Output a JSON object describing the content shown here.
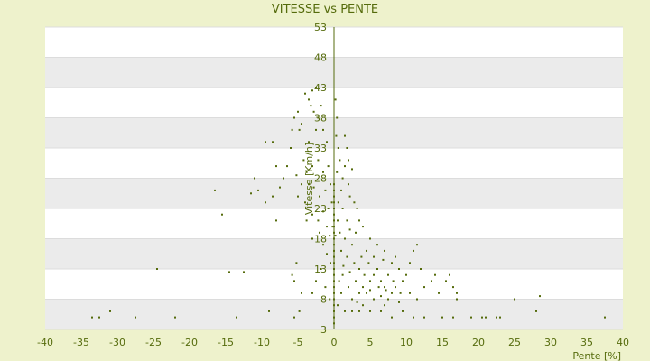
{
  "chart_data": {
    "type": "scatter",
    "title": "VITESSE vs PENTE",
    "xlabel": "Pente [%]",
    "ylabel": "Vitesse [Km/h]",
    "xlim": [
      -40,
      40
    ],
    "ylim": [
      3,
      53
    ],
    "x_ticks": [
      "-40",
      "-35",
      "-30",
      "-25",
      "-20",
      "-15",
      "-10",
      "-5",
      "0",
      "5",
      "10",
      "15",
      "20",
      "25",
      "30",
      "35",
      "40"
    ],
    "y_ticks": [
      "3",
      "8",
      "13",
      "18",
      "23",
      "28",
      "33",
      "38",
      "43",
      "48",
      "53"
    ],
    "grid": true,
    "legend": "none",
    "colors": {
      "points": "#556b0c",
      "band": "#ebebeb",
      "plot": "#ffffff",
      "background": "#eef2cc"
    },
    "series": [
      {
        "points": [
          [
            -33.5,
            5
          ],
          [
            -32.5,
            5
          ],
          [
            -31,
            6
          ],
          [
            -27.5,
            5
          ],
          [
            -24.5,
            13
          ],
          [
            -22,
            5
          ],
          [
            -16.5,
            26
          ],
          [
            -15.5,
            22
          ],
          [
            -14.5,
            12.5
          ],
          [
            -13.5,
            5
          ],
          [
            -12.5,
            12.5
          ],
          [
            -11.5,
            25.5
          ],
          [
            -11,
            28
          ],
          [
            -10.5,
            26
          ],
          [
            -9.5,
            24
          ],
          [
            -9,
            6
          ],
          [
            -8.5,
            25
          ],
          [
            -8,
            21
          ],
          [
            -9.5,
            34
          ],
          [
            -8.5,
            34
          ],
          [
            -8,
            30
          ],
          [
            -7.5,
            26.5
          ],
          [
            -7,
            28
          ],
          [
            -6.5,
            30
          ],
          [
            -6,
            33
          ],
          [
            -5.8,
            36
          ],
          [
            -5.5,
            38
          ],
          [
            -5,
            39
          ],
          [
            -4.8,
            36
          ],
          [
            -4.5,
            37
          ],
          [
            -4,
            42
          ],
          [
            -3.5,
            41
          ],
          [
            -3,
            42.5
          ],
          [
            -2.5,
            43
          ],
          [
            -3.2,
            40
          ],
          [
            -2.8,
            39
          ],
          [
            -2.2,
            38
          ],
          [
            -1.8,
            40
          ],
          [
            -2.5,
            36
          ],
          [
            -1.5,
            36
          ],
          [
            -1,
            34
          ],
          [
            -3.5,
            34
          ],
          [
            -4.2,
            31
          ],
          [
            -3.8,
            29
          ],
          [
            -3,
            30
          ],
          [
            -2.2,
            31
          ],
          [
            -1.5,
            29
          ],
          [
            -0.8,
            30
          ],
          [
            -0.5,
            27
          ],
          [
            -1.2,
            26
          ],
          [
            -2,
            25
          ],
          [
            -2.8,
            26.5
          ],
          [
            -3.5,
            27
          ],
          [
            -4.5,
            27
          ],
          [
            -5,
            25
          ],
          [
            -5.2,
            28.5
          ],
          [
            -4,
            24
          ],
          [
            -3,
            22
          ],
          [
            -2.2,
            21
          ],
          [
            -1.5,
            22.5
          ],
          [
            -0.8,
            23
          ],
          [
            -0.3,
            24
          ],
          [
            -1,
            20
          ],
          [
            -2,
            19
          ],
          [
            -1.5,
            17
          ],
          [
            -0.6,
            18.5
          ],
          [
            -0.2,
            20
          ],
          [
            -3,
            18
          ],
          [
            -3.8,
            21
          ],
          [
            -5.5,
            11
          ],
          [
            -5.2,
            14
          ],
          [
            -5.8,
            12
          ],
          [
            -4.5,
            9
          ],
          [
            -4.8,
            6
          ],
          [
            -5.5,
            5
          ],
          [
            -3,
            9
          ],
          [
            -2.5,
            11
          ],
          [
            -1.8,
            13
          ],
          [
            -1.2,
            10
          ],
          [
            -0.6,
            8
          ],
          [
            -0.5,
            14
          ],
          [
            -1,
            15.5
          ],
          [
            0,
            4
          ],
          [
            0,
            5
          ],
          [
            0,
            6
          ],
          [
            0,
            7
          ],
          [
            0,
            8
          ],
          [
            0,
            9
          ],
          [
            0,
            10
          ],
          [
            0,
            11
          ],
          [
            0,
            12
          ],
          [
            0,
            13
          ],
          [
            0,
            14
          ],
          [
            0,
            15
          ],
          [
            0,
            16
          ],
          [
            0,
            17
          ],
          [
            0,
            18
          ],
          [
            0,
            19
          ],
          [
            0,
            20
          ],
          [
            0,
            21
          ],
          [
            0,
            22
          ],
          [
            0,
            23
          ],
          [
            0,
            24
          ],
          [
            0,
            25
          ],
          [
            0,
            26
          ],
          [
            0,
            27
          ],
          [
            0.2,
            18.5
          ],
          [
            0.5,
            21
          ],
          [
            0.8,
            19
          ],
          [
            0.6,
            24
          ],
          [
            1,
            26
          ],
          [
            0.4,
            29
          ],
          [
            0.8,
            31
          ],
          [
            1.2,
            28
          ],
          [
            1.5,
            35
          ],
          [
            1.8,
            33
          ],
          [
            1.5,
            30
          ],
          [
            2,
            31
          ],
          [
            2.5,
            29.5
          ],
          [
            2,
            27
          ],
          [
            1.2,
            23
          ],
          [
            1.8,
            21
          ],
          [
            2.2,
            25
          ],
          [
            2.8,
            24
          ],
          [
            3.2,
            23
          ],
          [
            1.5,
            18
          ],
          [
            1,
            16
          ],
          [
            1.8,
            15
          ],
          [
            2.5,
            17
          ],
          [
            3,
            19
          ],
          [
            3.5,
            21
          ],
          [
            4,
            20
          ],
          [
            2.8,
            14
          ],
          [
            3.5,
            13
          ],
          [
            4.2,
            12
          ],
          [
            3,
            11
          ],
          [
            4,
            10
          ],
          [
            4.5,
            9
          ],
          [
            5,
            11
          ],
          [
            5.5,
            12
          ],
          [
            6,
            13
          ],
          [
            6.5,
            11
          ],
          [
            7,
            10
          ],
          [
            7.5,
            12
          ],
          [
            8,
            14
          ],
          [
            8.5,
            15
          ],
          [
            9,
            13
          ],
          [
            9.5,
            11
          ],
          [
            10,
            12
          ],
          [
            10.5,
            14
          ],
          [
            11,
            16
          ],
          [
            11.5,
            17
          ],
          [
            12,
            13
          ],
          [
            5.5,
            15
          ],
          [
            6,
            17
          ],
          [
            7,
            16
          ],
          [
            5,
            18
          ],
          [
            4.5,
            16
          ],
          [
            6.5,
            8.5
          ],
          [
            7,
            7
          ],
          [
            7.5,
            8
          ],
          [
            8,
            9
          ],
          [
            8.5,
            10
          ],
          [
            9,
            7.5
          ],
          [
            5.5,
            8
          ],
          [
            5,
            9.5
          ],
          [
            4,
            7
          ],
          [
            3.5,
            9
          ],
          [
            2.5,
            8
          ],
          [
            2,
            10
          ],
          [
            1.2,
            12
          ],
          [
            1,
            9
          ],
          [
            1.5,
            6
          ],
          [
            2.5,
            6
          ],
          [
            3.5,
            6
          ],
          [
            5,
            6
          ],
          [
            6.5,
            6
          ],
          [
            8,
            5
          ],
          [
            9.5,
            6
          ],
          [
            11,
            5
          ],
          [
            12.5,
            5
          ],
          [
            10.5,
            9
          ],
          [
            11.5,
            8
          ],
          [
            12.5,
            10
          ],
          [
            13.5,
            11
          ],
          [
            14,
            12
          ],
          [
            14.5,
            9
          ],
          [
            15.5,
            11
          ],
          [
            16,
            12
          ],
          [
            16.5,
            10
          ],
          [
            17,
            9
          ],
          [
            17,
            8
          ],
          [
            15,
            5
          ],
          [
            16.5,
            5
          ],
          [
            19,
            5
          ],
          [
            20.5,
            5
          ],
          [
            21,
            5
          ],
          [
            22.5,
            5
          ],
          [
            23,
            5
          ],
          [
            25,
            8
          ],
          [
            28.5,
            8.5
          ],
          [
            28,
            6
          ],
          [
            37.5,
            5
          ],
          [
            0.3,
            35
          ],
          [
            0.6,
            33
          ],
          [
            0.4,
            38
          ],
          [
            0.2,
            41
          ],
          [
            2.2,
            19.5
          ],
          [
            3.8,
            15
          ],
          [
            4.8,
            14
          ],
          [
            6.2,
            10
          ],
          [
            7.2,
            9.5
          ],
          [
            8.2,
            11
          ],
          [
            3.2,
            7.5
          ],
          [
            2.2,
            12.5
          ],
          [
            1.3,
            13.5
          ],
          [
            0.7,
            11
          ],
          [
            0.5,
            7
          ],
          [
            6.8,
            14.5
          ],
          [
            9.2,
            9
          ]
        ]
      }
    ]
  }
}
